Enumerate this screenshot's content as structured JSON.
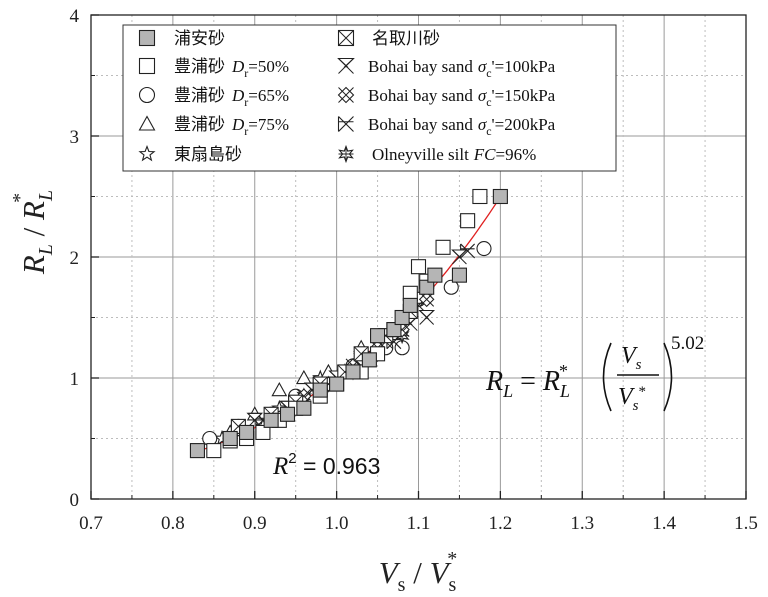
{
  "chart_data": {
    "type": "scatter",
    "xlabel": {
      "main": "V",
      "main_sub": "s",
      "sep": " / ",
      "ref": "V",
      "ref_sub": "s",
      "ref_sup": "*"
    },
    "ylabel": {
      "main": "R",
      "main_sub": "L",
      "sep": " / ",
      "ref": "R",
      "ref_sub": "L",
      "ref_sup": "*"
    },
    "xlim": [
      0.7,
      1.5
    ],
    "ylim": [
      0,
      4
    ],
    "xticks": [
      0.7,
      0.8,
      0.9,
      1.0,
      1.1,
      1.2,
      1.3,
      1.4,
      1.5
    ],
    "yticks": [
      0,
      1,
      2,
      3,
      4
    ],
    "xtick_labels": [
      "0.7",
      "0.8",
      "0.9",
      "1.0",
      "1.1",
      "1.2",
      "1.3",
      "1.4",
      "1.5"
    ],
    "ytick_labels": [
      "0",
      "1",
      "2",
      "3",
      "4"
    ],
    "grid": true,
    "legend_position": "top-left",
    "fit": {
      "exponent": 5.02,
      "x_range": [
        0.83,
        1.2
      ],
      "color": "#e02020",
      "equation": {
        "lhs": "R",
        "lhs_sub": "L",
        "eq": " = ",
        "rhs": "R",
        "rhs_sub": "L",
        "rhs_sup": "*",
        "num": "V",
        "num_sub": "s",
        "den": "V",
        "den_sub": "s",
        "den_sup": "*",
        "power": "5.02"
      },
      "r2": {
        "label": "R",
        "sup": "2",
        "value": " = 0.963"
      }
    },
    "series": [
      {
        "name": "浦安砂",
        "marker": "square-filled",
        "x": [
          0.83,
          0.87,
          0.89,
          0.92,
          0.94,
          0.96,
          0.98,
          1.0,
          1.02,
          1.04,
          1.05,
          1.07,
          1.08,
          1.09,
          1.11,
          1.12,
          1.15,
          1.2
        ],
        "y": [
          0.4,
          0.5,
          0.55,
          0.65,
          0.7,
          0.75,
          0.9,
          0.95,
          1.05,
          1.15,
          1.35,
          1.4,
          1.5,
          1.6,
          1.75,
          1.85,
          1.85,
          2.5
        ]
      },
      {
        "name": "豊浦砂",
        "dr": "50%",
        "marker": "square-open",
        "x": [
          0.85,
          0.87,
          0.89,
          0.91,
          0.93,
          0.95,
          0.98,
          1.0,
          1.03,
          1.05,
          1.07,
          1.09,
          1.1,
          1.11,
          1.13,
          1.16,
          1.175
        ],
        "y": [
          0.4,
          0.48,
          0.5,
          0.55,
          0.65,
          0.75,
          0.85,
          0.95,
          1.05,
          1.2,
          1.4,
          1.7,
          1.92,
          1.8,
          2.08,
          2.3,
          2.5
        ]
      },
      {
        "name": "豊浦砂",
        "dr": "65%",
        "marker": "circle-open",
        "x": [
          0.845,
          0.88,
          0.92,
          0.95,
          0.99,
          1.02,
          1.06,
          1.08,
          1.1,
          1.14,
          1.18
        ],
        "y": [
          0.5,
          0.6,
          0.7,
          0.85,
          0.95,
          1.1,
          1.25,
          1.25,
          1.65,
          1.75,
          2.07
        ]
      },
      {
        "name": "豊浦砂",
        "dr": "75%",
        "marker": "triangle-open",
        "x": [
          0.87,
          0.9,
          0.93,
          0.96,
          0.99,
          1.03
        ],
        "y": [
          0.55,
          0.7,
          0.9,
          1.0,
          1.05,
          1.25
        ]
      },
      {
        "name": "東扇島砂",
        "marker": "star-open",
        "x": [
          0.86,
          0.88,
          0.91,
          0.93,
          0.96,
          0.98,
          1.01,
          1.03,
          1.06
        ],
        "y": [
          0.5,
          0.55,
          0.6,
          0.75,
          0.85,
          1.0,
          1.05,
          1.2,
          1.3
        ]
      },
      {
        "name": "名取川砂",
        "marker": "square-x",
        "x": [
          0.88,
          0.92,
          0.95,
          0.98,
          1.01,
          1.03,
          1.06,
          1.09
        ],
        "y": [
          0.6,
          0.7,
          0.8,
          0.95,
          1.05,
          1.2,
          1.35,
          1.55
        ]
      },
      {
        "name": "Bohai bay sand",
        "cond": "=100kPa",
        "marker": "bowtie",
        "x": [
          0.9,
          0.94,
          0.97,
          1.0,
          1.03,
          1.06,
          1.09,
          1.11,
          1.15
        ],
        "y": [
          0.65,
          0.75,
          0.9,
          1.0,
          1.1,
          1.3,
          1.45,
          1.5,
          2.0
        ]
      },
      {
        "name": "Bohai bay sand",
        "cond": "=150kPa",
        "marker": "diamond-x",
        "x": [
          0.92,
          0.96,
          0.99,
          1.02,
          1.05,
          1.08,
          1.11
        ],
        "y": [
          0.7,
          0.85,
          0.95,
          1.1,
          1.25,
          1.4,
          1.65
        ]
      },
      {
        "name": "Bohai bay sand",
        "cond": "=200kPa",
        "marker": "hourglass-x",
        "x": [
          0.91,
          0.95,
          0.98,
          1.01,
          1.04,
          1.07,
          1.1,
          1.16
        ],
        "y": [
          0.65,
          0.8,
          0.95,
          1.05,
          1.2,
          1.3,
          1.6,
          2.05
        ]
      },
      {
        "name": "Olneyville silt",
        "fc": "FC",
        "fc_value": "=96%",
        "marker": "asterisk-star",
        "x": [
          0.96,
          0.99,
          1.02,
          1.05,
          1.08
        ],
        "y": [
          0.85,
          0.95,
          1.05,
          1.2,
          1.35
        ]
      }
    ],
    "legend_parts": {
      "dr_symbol": "D",
      "dr_sub": "r",
      "sigma_symbol": "σ",
      "sigma_sub": "c",
      "sigma_prime": "'"
    }
  }
}
